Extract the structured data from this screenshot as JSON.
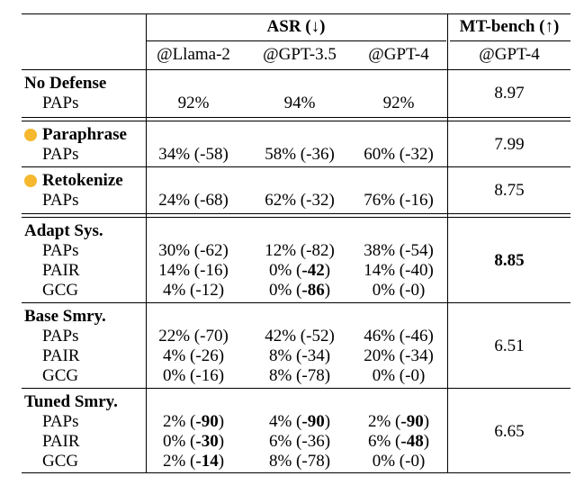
{
  "header": {
    "asr": "ASR (↓)",
    "mtbench": "MT-bench (↑)",
    "col_llama": "@Llama-2",
    "col_gpt35": "@GPT-3.5",
    "col_gpt4": "@GPT-4",
    "col_mt_gpt4": "@GPT-4"
  },
  "colors": {
    "marker": "#F5B82E"
  },
  "groups": [
    {
      "id": "no-defense",
      "name": "No Defense",
      "marker": false,
      "mt": "8.97",
      "mt_bold": false,
      "rows": [
        {
          "label": "PAPs",
          "cells": [
            {
              "pre": "92%",
              "bold": "",
              "post": ""
            },
            {
              "pre": "94%",
              "bold": "",
              "post": ""
            },
            {
              "pre": "92%",
              "bold": "",
              "post": ""
            }
          ]
        }
      ]
    },
    {
      "id": "paraphrase",
      "name": "Paraphrase",
      "marker": true,
      "mt": "7.99",
      "mt_bold": false,
      "rows": [
        {
          "label": "PAPs",
          "cells": [
            {
              "pre": "34% (-58)",
              "bold": "",
              "post": ""
            },
            {
              "pre": "58% (-36)",
              "bold": "",
              "post": ""
            },
            {
              "pre": "60% (-32)",
              "bold": "",
              "post": ""
            }
          ]
        }
      ]
    },
    {
      "id": "retokenize",
      "name": "Retokenize",
      "marker": true,
      "mt": "8.75",
      "mt_bold": false,
      "rows": [
        {
          "label": "PAPs",
          "cells": [
            {
              "pre": "24% (-68)",
              "bold": "",
              "post": ""
            },
            {
              "pre": "62% (-32)",
              "bold": "",
              "post": ""
            },
            {
              "pre": "76% (-16)",
              "bold": "",
              "post": ""
            }
          ]
        }
      ]
    },
    {
      "id": "adapt-sys",
      "name": "Adapt Sys.",
      "marker": false,
      "mt": "8.85",
      "mt_bold": true,
      "rows": [
        {
          "label": "PAPs",
          "cells": [
            {
              "pre": "30% (-62)",
              "bold": "",
              "post": ""
            },
            {
              "pre": "12% (-82)",
              "bold": "",
              "post": ""
            },
            {
              "pre": "38% (-54)",
              "bold": "",
              "post": ""
            }
          ]
        },
        {
          "label": "PAIR",
          "cells": [
            {
              "pre": "14% (-16)",
              "bold": "",
              "post": ""
            },
            {
              "pre": "0% (",
              "bold": "-42",
              "post": ")"
            },
            {
              "pre": "14% (-40)",
              "bold": "",
              "post": ""
            }
          ]
        },
        {
          "label": "GCG",
          "cells": [
            {
              "pre": "4% (-12)",
              "bold": "",
              "post": ""
            },
            {
              "pre": "0% (",
              "bold": "-86",
              "post": ")"
            },
            {
              "pre": "0% (-0)",
              "bold": "",
              "post": ""
            }
          ]
        }
      ]
    },
    {
      "id": "base-smry",
      "name": "Base Smry.",
      "marker": false,
      "mt": "6.51",
      "mt_bold": false,
      "rows": [
        {
          "label": "PAPs",
          "cells": [
            {
              "pre": "22% (-70)",
              "bold": "",
              "post": ""
            },
            {
              "pre": "42% (-52)",
              "bold": "",
              "post": ""
            },
            {
              "pre": "46% (-46)",
              "bold": "",
              "post": ""
            }
          ]
        },
        {
          "label": "PAIR",
          "cells": [
            {
              "pre": "4% (-26)",
              "bold": "",
              "post": ""
            },
            {
              "pre": "8% (-34)",
              "bold": "",
              "post": ""
            },
            {
              "pre": "20% (-34)",
              "bold": "",
              "post": ""
            }
          ]
        },
        {
          "label": "GCG",
          "cells": [
            {
              "pre": "0% (-16)",
              "bold": "",
              "post": ""
            },
            {
              "pre": "8% (-78)",
              "bold": "",
              "post": ""
            },
            {
              "pre": "0% (-0)",
              "bold": "",
              "post": ""
            }
          ]
        }
      ]
    },
    {
      "id": "tuned-smry",
      "name": "Tuned Smry.",
      "marker": false,
      "mt": "6.65",
      "mt_bold": false,
      "rows": [
        {
          "label": "PAPs",
          "cells": [
            {
              "pre": "2% (",
              "bold": "-90",
              "post": ")"
            },
            {
              "pre": "4% (",
              "bold": "-90",
              "post": ")"
            },
            {
              "pre": "2% (",
              "bold": "-90",
              "post": ")"
            }
          ]
        },
        {
          "label": "PAIR",
          "cells": [
            {
              "pre": "0% (",
              "bold": "-30",
              "post": ")"
            },
            {
              "pre": "6% (-36)",
              "bold": "",
              "post": ""
            },
            {
              "pre": "6% (",
              "bold": "-48",
              "post": ")"
            }
          ]
        },
        {
          "label": "GCG",
          "cells": [
            {
              "pre": "2% (",
              "bold": "-14",
              "post": ")"
            },
            {
              "pre": "8% (-78)",
              "bold": "",
              "post": ""
            },
            {
              "pre": "0% (-0)",
              "bold": "",
              "post": ""
            }
          ]
        }
      ]
    }
  ]
}
